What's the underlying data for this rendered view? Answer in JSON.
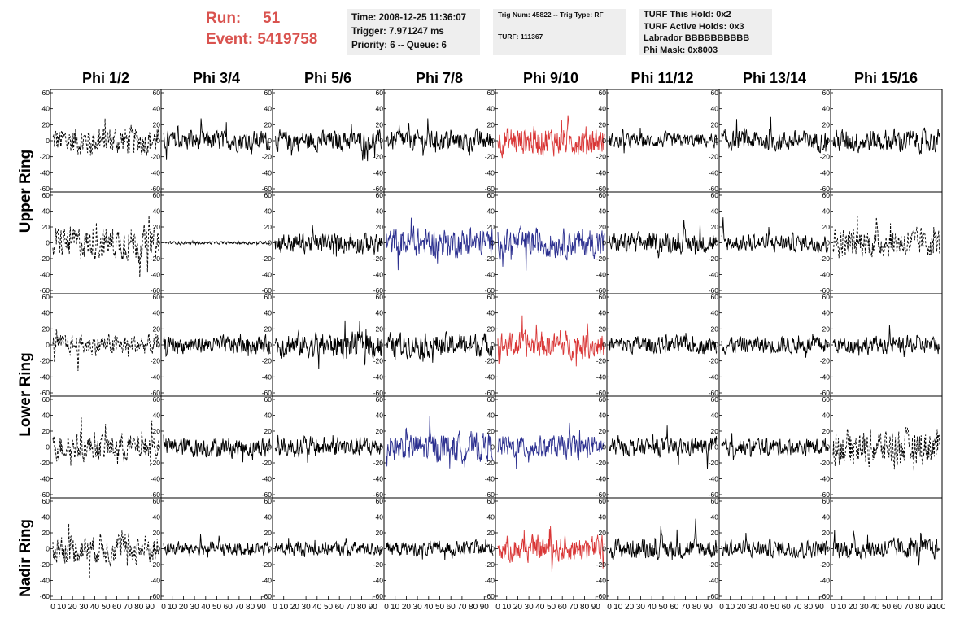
{
  "header": {
    "run_label": "Run:",
    "run_value": "51",
    "event_label": "Event:",
    "event_value": "5419758"
  },
  "info_time": {
    "time": "Time: 2008-12-25 11:36:07",
    "trigger": "Trigger: 7.971247 ms",
    "priority": "Priority: 6 -- Queue: 6"
  },
  "info_trig": {
    "line1": "Trig Num: 45822 -- Trig Type: RF",
    "line2": "TURF: 111367"
  },
  "info_turf": {
    "hold": "TURF This Hold: 0x2",
    "active": "TURF Active Holds: 0x3",
    "labrador": "Labrador BBBBBBBBBB",
    "phimask": "Phi Mask: 0x8003"
  },
  "phi_labels": [
    "Phi 1/2",
    "Phi 3/4",
    "Phi 5/6",
    "Phi 7/8",
    "Phi 9/10",
    "Phi 11/12",
    "Phi 13/14",
    "Phi 15/16"
  ],
  "ring_labels": {
    "upper": "Upper Ring",
    "lower": "Lower Ring",
    "nadir": "Nadir Ring"
  },
  "colors": {
    "normal": "#000000",
    "red": "#d93636",
    "blue": "#2b2f8f",
    "header_red": "#d9534f"
  },
  "chart_data": {
    "type": "line",
    "layout": "grid of waveform panels, 5 rows x 8 columns",
    "ylim": [
      -60,
      60
    ],
    "xlim": [
      0,
      100
    ],
    "y_ticks": [
      60,
      40,
      20,
      0,
      -20,
      -40,
      -60
    ],
    "x_ticks": [
      "0",
      "10",
      "20",
      "30",
      "40",
      "50",
      "60",
      "70",
      "80",
      "90"
    ],
    "x_tick_last": "100",
    "panels": [
      [
        {
          "style": "dashed",
          "color": "normal",
          "amp": 20
        },
        {
          "style": "solid",
          "color": "normal",
          "amp": 14
        },
        {
          "style": "solid",
          "color": "normal",
          "amp": 14
        },
        {
          "style": "solid",
          "color": "normal",
          "amp": 14
        },
        {
          "style": "solid",
          "color": "red",
          "amp": 20
        },
        {
          "style": "solid",
          "color": "normal",
          "amp": 10
        },
        {
          "style": "solid",
          "color": "normal",
          "amp": 14
        },
        {
          "style": "solid",
          "color": "normal",
          "amp": 16
        }
      ],
      [
        {
          "style": "dashed",
          "color": "normal",
          "amp": 22
        },
        {
          "style": "solid",
          "color": "normal",
          "amp": 2
        },
        {
          "style": "solid",
          "color": "normal",
          "amp": 14
        },
        {
          "style": "solid",
          "color": "blue",
          "amp": 20
        },
        {
          "style": "solid",
          "color": "blue",
          "amp": 20
        },
        {
          "style": "solid",
          "color": "normal",
          "amp": 14
        },
        {
          "style": "solid",
          "color": "normal",
          "amp": 12
        },
        {
          "style": "dashed",
          "color": "normal",
          "amp": 20
        }
      ],
      [
        {
          "style": "dashed",
          "color": "normal",
          "amp": 14
        },
        {
          "style": "solid",
          "color": "normal",
          "amp": 12
        },
        {
          "style": "solid",
          "color": "normal",
          "amp": 18
        },
        {
          "style": "solid",
          "color": "normal",
          "amp": 16
        },
        {
          "style": "solid",
          "color": "red",
          "amp": 18
        },
        {
          "style": "solid",
          "color": "normal",
          "amp": 12
        },
        {
          "style": "solid",
          "color": "normal",
          "amp": 12
        },
        {
          "style": "solid",
          "color": "normal",
          "amp": 12
        }
      ],
      [
        {
          "style": "dashed",
          "color": "normal",
          "amp": 18
        },
        {
          "style": "solid",
          "color": "normal",
          "amp": 14
        },
        {
          "style": "solid",
          "color": "normal",
          "amp": 14
        },
        {
          "style": "solid",
          "color": "blue",
          "amp": 20
        },
        {
          "style": "solid",
          "color": "blue",
          "amp": 16
        },
        {
          "style": "solid",
          "color": "normal",
          "amp": 12
        },
        {
          "style": "solid",
          "color": "normal",
          "amp": 12
        },
        {
          "style": "dashed",
          "color": "normal",
          "amp": 24
        }
      ],
      [
        {
          "style": "dashed",
          "color": "normal",
          "amp": 20
        },
        {
          "style": "solid",
          "color": "normal",
          "amp": 10
        },
        {
          "style": "solid",
          "color": "normal",
          "amp": 10
        },
        {
          "style": "solid",
          "color": "normal",
          "amp": 10
        },
        {
          "style": "solid",
          "color": "red",
          "amp": 18
        },
        {
          "style": "solid",
          "color": "normal",
          "amp": 14
        },
        {
          "style": "solid",
          "color": "normal",
          "amp": 12
        },
        {
          "style": "solid",
          "color": "normal",
          "amp": 14
        }
      ]
    ]
  }
}
